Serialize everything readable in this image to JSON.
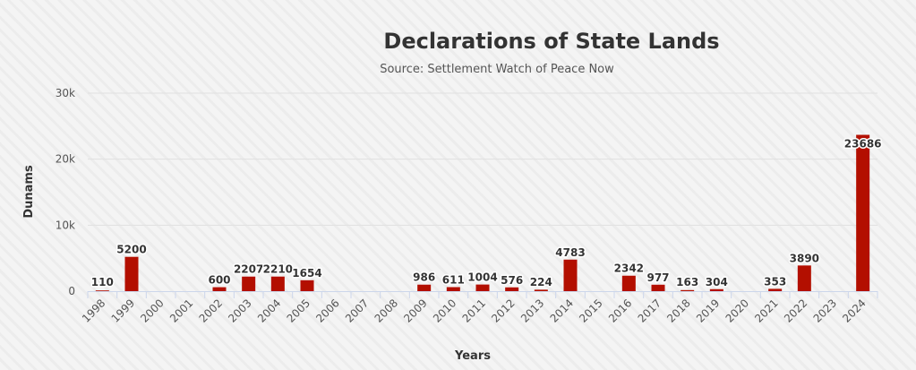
{
  "chart_data": {
    "type": "bar",
    "title": "Declarations of State Lands",
    "subtitle": "Source: Settlement Watch of Peace Now",
    "xlabel": "Years",
    "ylabel": "Dunams",
    "ylim": [
      0,
      30000
    ],
    "yticks": [
      0,
      10000,
      20000,
      30000
    ],
    "ytick_labels": [
      "0",
      "10k",
      "20k",
      "30k"
    ],
    "grid": true,
    "bar_color": "#b30f00",
    "categories": [
      "1998",
      "1999",
      "2000",
      "2001",
      "2002",
      "2003",
      "2004",
      "2005",
      "2006",
      "2007",
      "2008",
      "2009",
      "2010",
      "2011",
      "2012",
      "2013",
      "2014",
      "2015",
      "2016",
      "2017",
      "2018",
      "2019",
      "2020",
      "2021",
      "2022",
      "2023",
      "2024"
    ],
    "values": [
      110,
      5200,
      null,
      null,
      600,
      2207,
      2210,
      1654,
      null,
      null,
      null,
      986,
      611,
      1004,
      576,
      224,
      4783,
      null,
      2342,
      977,
      163,
      304,
      null,
      353,
      3890,
      null,
      23686
    ]
  }
}
